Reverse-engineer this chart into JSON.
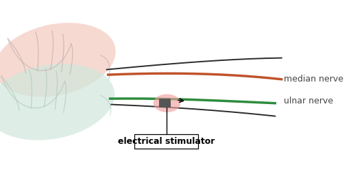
{
  "background_color": "#ffffff",
  "median_nerve_color": "#c0522a",
  "ulnar_nerve_color": "#2d8c3c",
  "nerve_line_color": "#2a2a2a",
  "hand_fill_upper": "#f5d5cc",
  "hand_fill_lower": "#d0e8dc",
  "hand_stroke": "#c0b0b0",
  "hand_stroke_lower": "#b0c8c0",
  "stimulator_color": "#555555",
  "stimulator_glow": "#f0a0a0",
  "label_median": "median nerve",
  "label_ulnar": "ulnar nerve",
  "label_stimulator": "electrical stimulator",
  "label_fontsize": 9,
  "stimulator_fontsize": 9
}
